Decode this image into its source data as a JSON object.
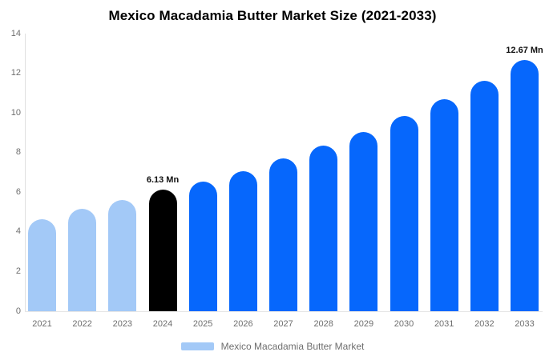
{
  "title": "Mexico Macadamia Butter Market Size (2021-2033)",
  "legend": {
    "label": "Mexico Macadamia Butter Market",
    "swatch_color": "#a3c9f7"
  },
  "colors": {
    "historical_bar": "#a3c9f7",
    "base_year_bar": "#000000",
    "forecast_bar": "#0667fc",
    "axis_line": "#e0e0e0",
    "muted_text": "#6e6e6e",
    "title_text": "#000000",
    "data_label_text": "#111111"
  },
  "chart_data": {
    "type": "bar",
    "title": "Mexico Macadamia Butter Market Size (2021-2033)",
    "categories": [
      "2021",
      "2022",
      "2023",
      "2024",
      "2025",
      "2026",
      "2027",
      "2028",
      "2029",
      "2030",
      "2031",
      "2032",
      "2033"
    ],
    "series": [
      {
        "name": "Mexico Macadamia Butter Market",
        "values": [
          4.65,
          5.15,
          5.6,
          6.13,
          6.55,
          7.05,
          7.7,
          8.35,
          9.05,
          9.85,
          10.7,
          11.6,
          12.67
        ]
      }
    ],
    "bar_colors_by_index": [
      "#a3c9f7",
      "#a3c9f7",
      "#a3c9f7",
      "#000000",
      "#0667fc",
      "#0667fc",
      "#0667fc",
      "#0667fc",
      "#0667fc",
      "#0667fc",
      "#0667fc",
      "#0667fc",
      "#0667fc"
    ],
    "data_labels": [
      {
        "index": 3,
        "text": "6.13 Mn"
      },
      {
        "index": 12,
        "text": "12.67 Mn"
      }
    ],
    "unit": "Mn",
    "xlabel": "",
    "ylabel": "",
    "ylim": [
      0,
      14
    ],
    "yticks": [
      "0",
      "2",
      "4",
      "6",
      "8",
      "10",
      "12",
      "14"
    ],
    "grid": false,
    "legend_position": "bottom"
  }
}
